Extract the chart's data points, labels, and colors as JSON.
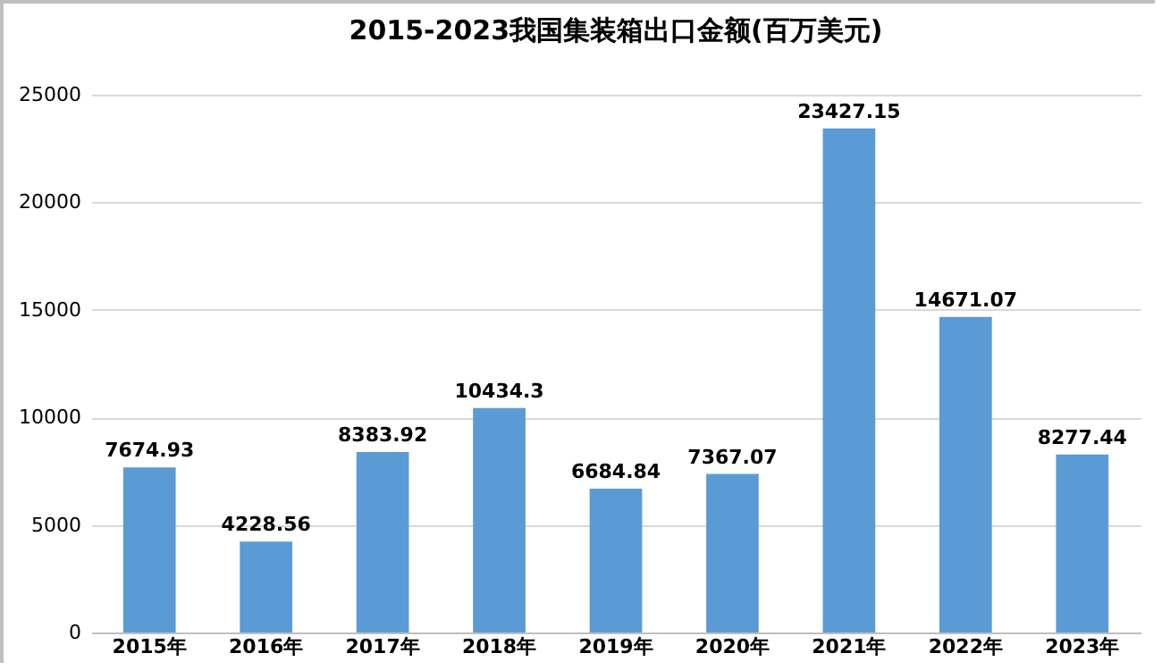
{
  "chart_data": {
    "type": "bar",
    "title": "2015-2023我国集装箱出口金额(百万美元)",
    "categories": [
      "2015年",
      "2016年",
      "2017年",
      "2018年",
      "2019年",
      "2020年",
      "2021年",
      "2022年",
      "2023年"
    ],
    "values": [
      7674.93,
      4228.56,
      8383.92,
      10434.3,
      6684.84,
      7367.07,
      23427.15,
      14671.07,
      8277.44
    ],
    "color": "#5b9bd5",
    "ylim": [
      0,
      25000
    ],
    "yticks": [
      0,
      5000,
      10000,
      15000,
      20000,
      25000
    ],
    "grid": "y",
    "data_labels": true
  }
}
